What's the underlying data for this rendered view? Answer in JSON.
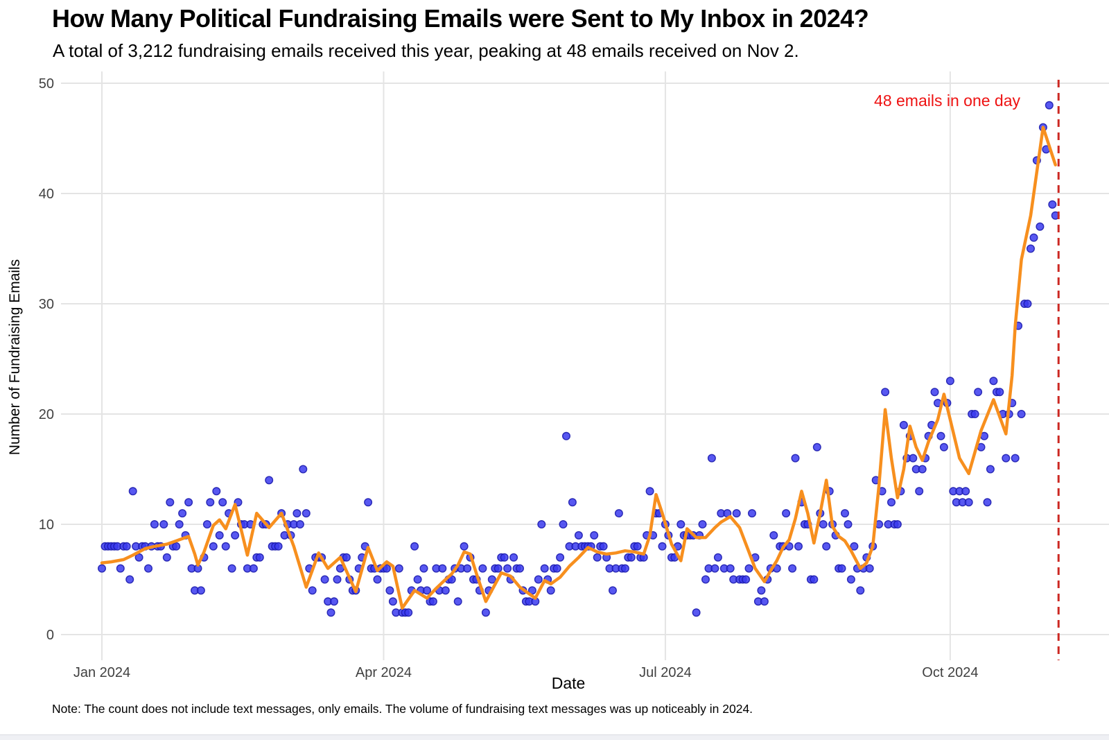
{
  "header": {
    "title": "How Many Political Fundraising Emails were Sent to My Inbox in 2024?",
    "subtitle": "A total of 3,212 fundraising emails received this year, peaking at 48 emails received on Nov 2."
  },
  "footer": {
    "note": "Note: The count does not include text messages, only emails. The volume of fundraising text messages was up noticeably in 2024."
  },
  "chart_data": {
    "type": "scatter",
    "title": "How Many Political Fundraising Emails were Sent to My Inbox in 2024?",
    "xlabel": "Date",
    "ylabel": "Number of Fundraising Emails",
    "ylim": [
      0,
      50
    ],
    "y_ticks": [
      0,
      10,
      20,
      30,
      40,
      50
    ],
    "x_ticks": [
      {
        "label": "Jan 2024",
        "day": 0
      },
      {
        "label": "Apr 2024",
        "day": 91
      },
      {
        "label": "Jul 2024",
        "day": 182
      },
      {
        "label": "Oct 2024",
        "day": 274
      }
    ],
    "grid": "on",
    "start_date": "2024-01-01",
    "daily_values": [
      6,
      8,
      8,
      8,
      8,
      8,
      6,
      8,
      8,
      5,
      13,
      8,
      7,
      8,
      8,
      6,
      8,
      10,
      8,
      8,
      10,
      7,
      12,
      8,
      8,
      10,
      11,
      9,
      12,
      6,
      4,
      6,
      4,
      7,
      10,
      12,
      8,
      13,
      9,
      12,
      8,
      11,
      6,
      9,
      12,
      10,
      10,
      6,
      10,
      6,
      7,
      7,
      10,
      10,
      14,
      8,
      8,
      8,
      11,
      9,
      10,
      9,
      10,
      11,
      10,
      15,
      11,
      6,
      4,
      7,
      7,
      7,
      5,
      3,
      2,
      3,
      5,
      6,
      7,
      7,
      5,
      4,
      4,
      6,
      7,
      8,
      12,
      6,
      6,
      5,
      6,
      6,
      6,
      4,
      3,
      2,
      6,
      2,
      2,
      2,
      4,
      8,
      5,
      4,
      6,
      4,
      3,
      3,
      6,
      4,
      6,
      4,
      5,
      5,
      6,
      3,
      6,
      8,
      6,
      7,
      5,
      5,
      4,
      6,
      2,
      4,
      5,
      6,
      6,
      7,
      7,
      6,
      5,
      7,
      6,
      6,
      4,
      3,
      3,
      4,
      3,
      5,
      10,
      6,
      5,
      4,
      6,
      6,
      7,
      10,
      18,
      8,
      12,
      8,
      9,
      8,
      8,
      8,
      8,
      9,
      7,
      8,
      8,
      7,
      6,
      4,
      6,
      11,
      6,
      6,
      7,
      7,
      8,
      8,
      7,
      7,
      9,
      13,
      9,
      11,
      11,
      8,
      10,
      9,
      7,
      7,
      8,
      10,
      9,
      9,
      9,
      9,
      2,
      9,
      10,
      5,
      6,
      16,
      6,
      7,
      11,
      6,
      11,
      6,
      5,
      11,
      5,
      5,
      5,
      6,
      11,
      7,
      3,
      4,
      3,
      5,
      6,
      9,
      6,
      8,
      8,
      11,
      8,
      6,
      16,
      8,
      12,
      10,
      10,
      5,
      5,
      17,
      11,
      10,
      8,
      13,
      10,
      9,
      6,
      6,
      11,
      10,
      5,
      8,
      6,
      4,
      6,
      7,
      6,
      8,
      14,
      10,
      13,
      22,
      10,
      12,
      10,
      10,
      13,
      19,
      16,
      18,
      16,
      15,
      13,
      15,
      16,
      18,
      19,
      22,
      21,
      18,
      17,
      21,
      23,
      13,
      12,
      13,
      12,
      13,
      12,
      20,
      20,
      22,
      17,
      18,
      12,
      15,
      23,
      22,
      22,
      20,
      16,
      20,
      21,
      16,
      28,
      20,
      30,
      30,
      35,
      36,
      43,
      37,
      46,
      44,
      48,
      39,
      38
    ],
    "trend_series": {
      "name": "smoothed weekly average",
      "points": [
        [
          0,
          6.5
        ],
        [
          3,
          6.6
        ],
        [
          7,
          6.8
        ],
        [
          10,
          7.2
        ],
        [
          14,
          7.8
        ],
        [
          17,
          8.0
        ],
        [
          21,
          8.2
        ],
        [
          25,
          8.6
        ],
        [
          28,
          8.9
        ],
        [
          30,
          7.3
        ],
        [
          31,
          6.3
        ],
        [
          33,
          7.5
        ],
        [
          36,
          9.9
        ],
        [
          38,
          10.4
        ],
        [
          40,
          9.6
        ],
        [
          43,
          11.8
        ],
        [
          47,
          7.2
        ],
        [
          50,
          11.0
        ],
        [
          54,
          9.7
        ],
        [
          58,
          11.0
        ],
        [
          62,
          8.0
        ],
        [
          66,
          4.3
        ],
        [
          70,
          7.4
        ],
        [
          73,
          6.0
        ],
        [
          77,
          7.0
        ],
        [
          82,
          3.9
        ],
        [
          86,
          7.9
        ],
        [
          89,
          5.8
        ],
        [
          92,
          6.6
        ],
        [
          94,
          6.2
        ],
        [
          97,
          2.4
        ],
        [
          101,
          4.0
        ],
        [
          105,
          3.3
        ],
        [
          108,
          4.2
        ],
        [
          111,
          5.0
        ],
        [
          113,
          5.5
        ],
        [
          115,
          6.3
        ],
        [
          117,
          7.5
        ],
        [
          119,
          7.3
        ],
        [
          121,
          5.5
        ],
        [
          124,
          3.0
        ],
        [
          129,
          5.6
        ],
        [
          132,
          5.3
        ],
        [
          135,
          4.3
        ],
        [
          137,
          3.9
        ],
        [
          140,
          3.3
        ],
        [
          143,
          4.9
        ],
        [
          145,
          4.6
        ],
        [
          148,
          5.2
        ],
        [
          151,
          6.2
        ],
        [
          154,
          7.0
        ],
        [
          157,
          7.9
        ],
        [
          160,
          7.5
        ],
        [
          163,
          7.3
        ],
        [
          166,
          7.4
        ],
        [
          169,
          7.6
        ],
        [
          172,
          7.5
        ],
        [
          175,
          7.3
        ],
        [
          177,
          9.0
        ],
        [
          179,
          12.7
        ],
        [
          181,
          11.0
        ],
        [
          184,
          8.2
        ],
        [
          187,
          6.7
        ],
        [
          189,
          9.6
        ],
        [
          192,
          8.8
        ],
        [
          195,
          8.8
        ],
        [
          198,
          9.7
        ],
        [
          200,
          10.2
        ],
        [
          203,
          10.7
        ],
        [
          206,
          9.7
        ],
        [
          209,
          7.5
        ],
        [
          211,
          6.0
        ],
        [
          214,
          4.8
        ],
        [
          216,
          5.8
        ],
        [
          218,
          6.7
        ],
        [
          220,
          7.9
        ],
        [
          222,
          8.6
        ],
        [
          224,
          10.5
        ],
        [
          226,
          13.0
        ],
        [
          228,
          11.0
        ],
        [
          230,
          8.3
        ],
        [
          232,
          11.0
        ],
        [
          234,
          14.0
        ],
        [
          236,
          9.8
        ],
        [
          238,
          8.9
        ],
        [
          240,
          8.5
        ],
        [
          242,
          7.6
        ],
        [
          245,
          6.0
        ],
        [
          247,
          6.5
        ],
        [
          249,
          8.0
        ],
        [
          251,
          13.5
        ],
        [
          253,
          20.4
        ],
        [
          255,
          16.0
        ],
        [
          257,
          12.4
        ],
        [
          259,
          15.0
        ],
        [
          261,
          18.9
        ],
        [
          263,
          17.0
        ],
        [
          265,
          15.8
        ],
        [
          267,
          17.5
        ],
        [
          270,
          19.5
        ],
        [
          272,
          21.8
        ],
        [
          274,
          19.5
        ],
        [
          277,
          16.0
        ],
        [
          280,
          14.6
        ],
        [
          284,
          18.5
        ],
        [
          288,
          21.3
        ],
        [
          292,
          18.2
        ],
        [
          294,
          23.5
        ],
        [
          295,
          28.0
        ],
        [
          297,
          34.0
        ],
        [
          300,
          38.0
        ],
        [
          304,
          46.0
        ],
        [
          308,
          42.6
        ]
      ]
    },
    "annotation": {
      "text": "48 emails in one day",
      "peak_value": 48,
      "peak_date": "2024-11-02"
    },
    "vline": {
      "day": 309,
      "style": "dashed"
    },
    "legend_position": "none",
    "colors": {
      "point": "#3b3bee",
      "point_border": "#1c1cae",
      "trend": "#f78f1e",
      "gridline": "#e4e4e4",
      "vline": "#cc2822",
      "annotation": "#ee1212",
      "tick_label": "#404040"
    }
  }
}
